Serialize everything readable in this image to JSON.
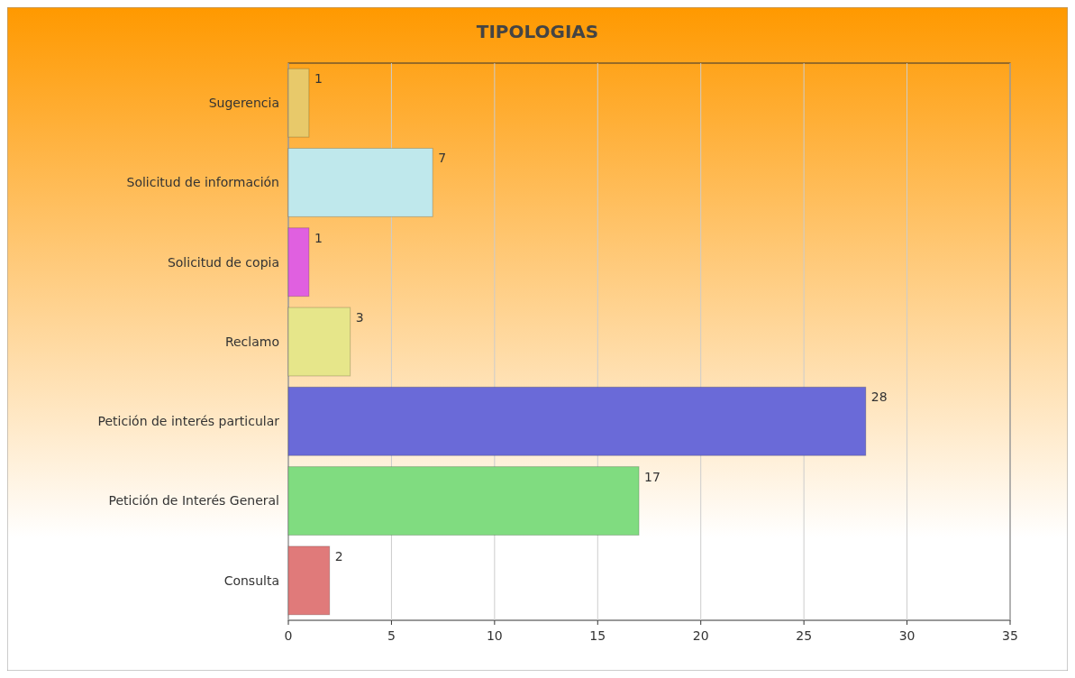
{
  "chart_data": {
    "type": "bar",
    "orientation": "horizontal",
    "title": "TIPOLOGIAS",
    "categories": [
      "Sugerencia",
      "Solicitud de información",
      "Solicitud de copia",
      "Reclamo",
      "Petición de interés particular",
      "Petición de Interés General",
      "Consulta"
    ],
    "values": [
      1,
      7,
      1,
      3,
      28,
      17,
      2
    ],
    "colors": [
      "#e8c96a",
      "#bfe8ec",
      "#e060e0",
      "#e6e68a",
      "#6a6ad8",
      "#80dc80",
      "#e07a7a"
    ],
    "xlim": [
      0,
      35
    ],
    "xticks": [
      0,
      5,
      10,
      15,
      20,
      25,
      30,
      35
    ],
    "grid": "x",
    "data_labels": true
  }
}
